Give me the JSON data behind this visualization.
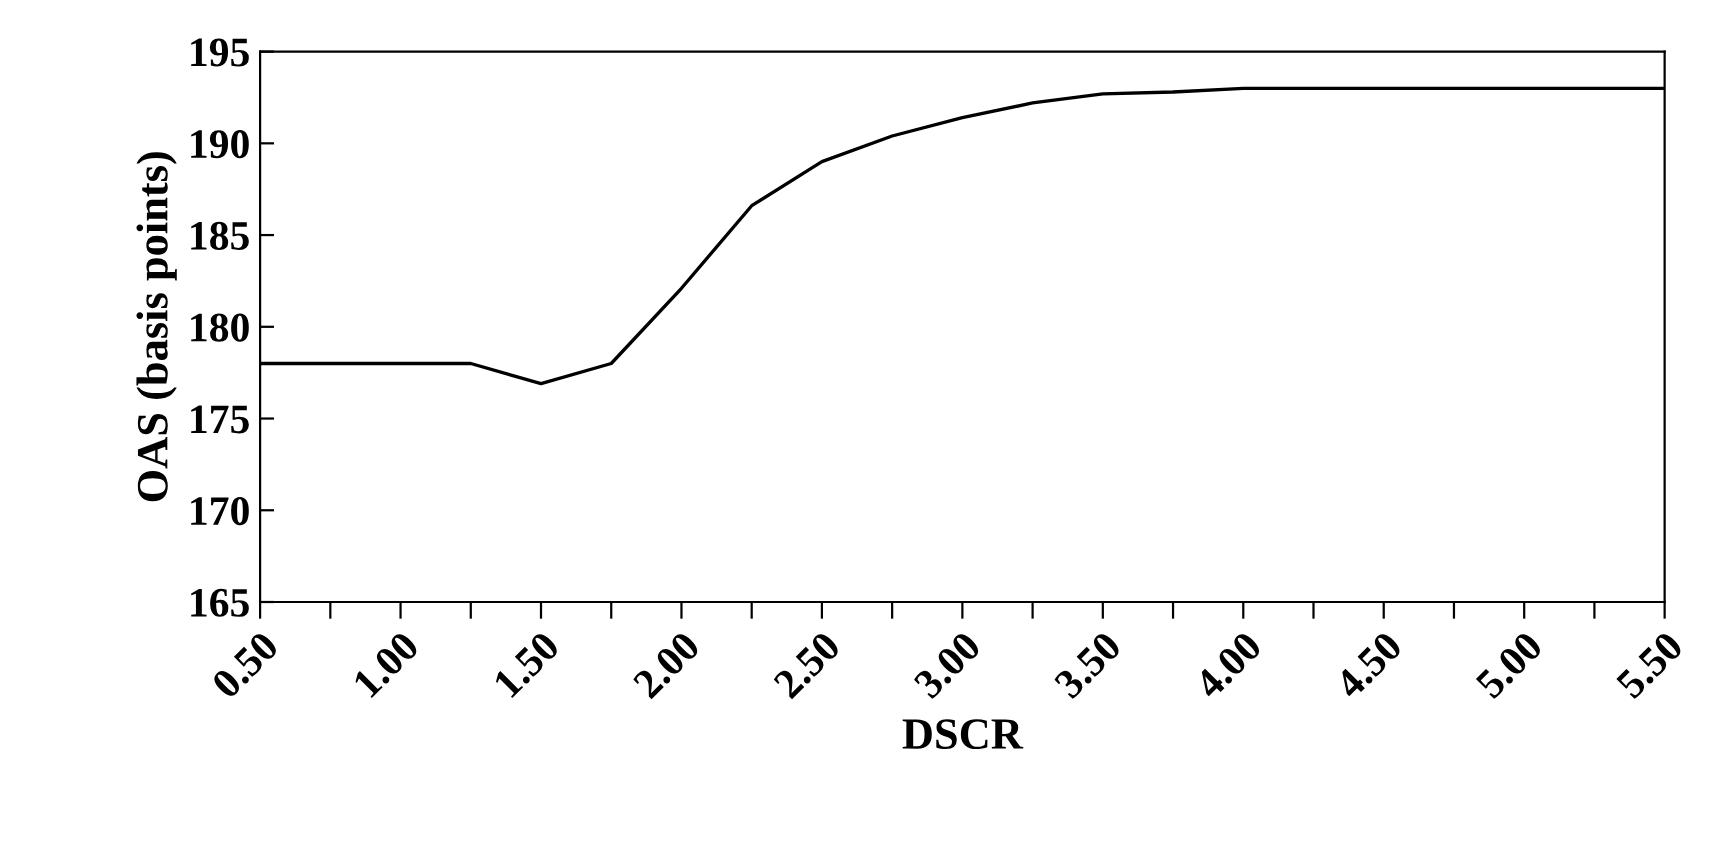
{
  "chart_data": {
    "type": "line",
    "xlabel": "DSCR",
    "ylabel": "OAS (basis points)",
    "x": [
      0.5,
      0.75,
      1.0,
      1.25,
      1.5,
      1.75,
      2.0,
      2.25,
      2.5,
      2.75,
      3.0,
      3.25,
      3.5,
      3.75,
      4.0,
      4.25,
      4.5,
      4.75,
      5.0,
      5.25,
      5.5
    ],
    "series": [
      {
        "color": "#000000",
        "values": [
          178,
          178,
          178,
          178,
          176.9,
          178,
          182.1,
          186.6,
          189.0,
          190.4,
          191.4,
          192.2,
          192.7,
          192.8,
          193.0,
          193.0,
          193.0,
          193.0,
          193.0,
          193.0,
          193.0
        ]
      }
    ],
    "xlim": [
      0.5,
      5.5
    ],
    "ylim": [
      165,
      195
    ],
    "xticks": [
      {
        "value": 0.5,
        "label": "0.50"
      },
      {
        "value": 0.75,
        "label": null
      },
      {
        "value": 1.0,
        "label": "1.00"
      },
      {
        "value": 1.25,
        "label": null
      },
      {
        "value": 1.5,
        "label": "1.50"
      },
      {
        "value": 1.75,
        "label": null
      },
      {
        "value": 2.0,
        "label": "2.00"
      },
      {
        "value": 2.25,
        "label": null
      },
      {
        "value": 2.5,
        "label": "2.50"
      },
      {
        "value": 2.75,
        "label": null
      },
      {
        "value": 3.0,
        "label": "3.00"
      },
      {
        "value": 3.25,
        "label": null
      },
      {
        "value": 3.5,
        "label": "3.50"
      },
      {
        "value": 3.75,
        "label": null
      },
      {
        "value": 4.0,
        "label": "4.00"
      },
      {
        "value": 4.25,
        "label": null
      },
      {
        "value": 4.5,
        "label": "4.50"
      },
      {
        "value": 4.75,
        "label": null
      },
      {
        "value": 5.0,
        "label": "5.00"
      },
      {
        "value": 5.25,
        "label": null
      },
      {
        "value": 5.5,
        "label": "5.50"
      }
    ],
    "yticks": [
      165,
      170,
      175,
      180,
      185,
      190,
      195
    ],
    "grid": false,
    "legend": false,
    "marker": "none",
    "line_style": "solid"
  }
}
